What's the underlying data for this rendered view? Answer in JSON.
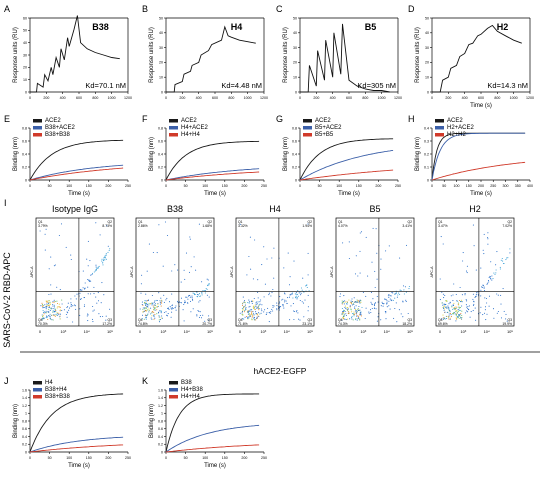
{
  "chart_data": [
    {
      "id": "A",
      "type": "line",
      "title": "B38",
      "kd": "Kd=70.1 nM",
      "ylabel": "Response units (RU)",
      "xlabel": "",
      "xlim": [
        0,
        1200
      ],
      "ylim": [
        0,
        60
      ],
      "xticks": [
        0,
        200,
        400,
        600,
        800,
        1000,
        1200
      ],
      "yticks": [
        0,
        10,
        20,
        30,
        40,
        50,
        60
      ],
      "x": [
        0,
        80,
        90,
        160,
        180,
        220,
        260,
        280,
        320,
        360,
        380,
        420,
        460,
        480,
        540,
        580,
        620,
        700,
        800,
        900,
        1000,
        1100
      ],
      "values": [
        0,
        0,
        7,
        4,
        14,
        9,
        20,
        14,
        28,
        20,
        35,
        26,
        44,
        37,
        51,
        62,
        40,
        35,
        32,
        30,
        28,
        27
      ]
    },
    {
      "id": "B",
      "type": "line",
      "title": "H4",
      "kd": "Kd=4.48 nM",
      "ylabel": "Response units (RU)",
      "xlabel": "",
      "xlim": [
        0,
        1200
      ],
      "ylim": [
        0,
        50
      ],
      "xticks": [
        0,
        200,
        400,
        600,
        800,
        1000,
        1200
      ],
      "yticks": [
        0,
        10,
        20,
        30,
        40,
        50
      ],
      "x": [
        0,
        100,
        110,
        200,
        220,
        300,
        320,
        400,
        430,
        520,
        560,
        680,
        720,
        760,
        800,
        900,
        1000,
        1100
      ],
      "values": [
        0,
        0,
        5,
        7,
        12,
        14,
        18,
        20,
        25,
        28,
        32,
        35,
        44,
        38,
        37,
        35,
        34,
        33
      ]
    },
    {
      "id": "C",
      "type": "line",
      "title": "B5",
      "kd": "Kd=305 nM",
      "ylabel": "Response units (RU)",
      "xlabel": "",
      "xlim": [
        0,
        1200
      ],
      "ylim": [
        0,
        50
      ],
      "xticks": [
        0,
        200,
        400,
        600,
        800,
        1000,
        1200
      ],
      "yticks": [
        0,
        10,
        20,
        30,
        40,
        50
      ],
      "x": [
        0,
        100,
        115,
        200,
        215,
        300,
        315,
        400,
        415,
        500,
        520,
        600,
        700,
        800,
        900,
        1000,
        1100
      ],
      "values": [
        0,
        0,
        18,
        4,
        28,
        8,
        35,
        10,
        40,
        12,
        46,
        8,
        4,
        2,
        1,
        1,
        0
      ]
    },
    {
      "id": "D",
      "type": "line",
      "title": "H2",
      "kd": "Kd=14.3 nM",
      "ylabel": "Response units (RU)",
      "xlabel": "Time (s)",
      "xlim": [
        0,
        1200
      ],
      "ylim": [
        0,
        50
      ],
      "xticks": [
        0,
        200,
        400,
        600,
        800,
        1000,
        1200
      ],
      "yticks": [
        0,
        10,
        20,
        30,
        40,
        50
      ],
      "x": [
        0,
        100,
        130,
        200,
        230,
        300,
        340,
        400,
        450,
        500,
        560,
        600,
        680,
        740,
        800,
        900,
        1000,
        1100
      ],
      "values": [
        0,
        0,
        8,
        10,
        16,
        18,
        24,
        26,
        32,
        33,
        38,
        39,
        43,
        45,
        41,
        38,
        35,
        33
      ]
    },
    {
      "id": "E",
      "type": "line",
      "xlabel": "Time (s)",
      "ylabel": "Binding (nm)",
      "xlim": [
        0,
        250
      ],
      "ylim": [
        0,
        0.8
      ],
      "xticks": [
        0,
        50,
        100,
        150,
        200,
        250
      ],
      "yticks": [
        0,
        0.2,
        0.4,
        0.6,
        0.8
      ],
      "series": [
        {
          "name": "ACE2",
          "color": "#1a1a1a",
          "plateau": 0.62,
          "k": 0.018
        },
        {
          "name": "B38+ACE2",
          "color": "#3b5fa8",
          "plateau": 0.3,
          "k": 0.006
        },
        {
          "name": "B38+B38",
          "color": "#d03a2a",
          "plateau": 0.3,
          "k": 0.004
        }
      ]
    },
    {
      "id": "F",
      "type": "line",
      "xlabel": "Time (s)",
      "ylabel": "Binding (nm)",
      "xlim": [
        0,
        250
      ],
      "ylim": [
        0,
        0.8
      ],
      "xticks": [
        0,
        50,
        100,
        150,
        200,
        250
      ],
      "yticks": [
        0,
        0.2,
        0.4,
        0.6,
        0.8
      ],
      "series": [
        {
          "name": "ACE2",
          "color": "#1a1a1a",
          "plateau": 0.6,
          "k": 0.02
        },
        {
          "name": "H4+ACE2",
          "color": "#3b5fa8",
          "plateau": 0.25,
          "k": 0.005
        },
        {
          "name": "H4+H4",
          "color": "#d03a2a",
          "plateau": 0.2,
          "k": 0.004
        }
      ]
    },
    {
      "id": "G",
      "type": "line",
      "xlabel": "Time (s)",
      "ylabel": "Binding (nm)",
      "xlim": [
        0,
        250
      ],
      "ylim": [
        0,
        0.8
      ],
      "xticks": [
        0,
        50,
        100,
        150,
        200,
        250
      ],
      "yticks": [
        0,
        0.2,
        0.4,
        0.6,
        0.8
      ],
      "series": [
        {
          "name": "ACE2",
          "color": "#1a1a1a",
          "plateau": 0.64,
          "k": 0.02
        },
        {
          "name": "B5+ACE2",
          "color": "#3b5fa8",
          "plateau": 0.6,
          "k": 0.006
        },
        {
          "name": "B5+B5",
          "color": "#d03a2a",
          "plateau": 0.3,
          "k": 0.003
        }
      ]
    },
    {
      "id": "H",
      "type": "line",
      "xlabel": "Time (s)",
      "ylabel": "Binding (nm)",
      "xlim": [
        0,
        400
      ],
      "ylim": [
        0,
        0.4
      ],
      "xticks": [
        0,
        50,
        100,
        150,
        200,
        250,
        300,
        350,
        400
      ],
      "yticks": [
        0,
        0.1,
        0.2,
        0.3,
        0.4
      ],
      "series": [
        {
          "name": "ACE2",
          "color": "#1a1a1a",
          "plateau": 0.36,
          "k": 0.05
        },
        {
          "name": "H2+ACE2",
          "color": "#3b5fa8",
          "plateau": 0.36,
          "k": 0.03
        },
        {
          "name": "H2+H2",
          "color": "#d03a2a",
          "plateau": 0.2,
          "k": 0.003
        }
      ]
    },
    {
      "id": "J",
      "type": "line",
      "xlabel": "Time (s)",
      "ylabel": "Binding (nm)",
      "xlim": [
        0,
        250
      ],
      "ylim": [
        0,
        1.6
      ],
      "xticks": [
        0,
        50,
        100,
        150,
        200,
        250
      ],
      "yticks": [
        0,
        0.2,
        0.4,
        0.6,
        0.8,
        1.0,
        1.2,
        1.4,
        1.6
      ],
      "series": [
        {
          "name": "H4",
          "color": "#1a1a1a",
          "plateau": 1.52,
          "k": 0.018
        },
        {
          "name": "B38+H4",
          "color": "#3b5fa8",
          "plateau": 0.45,
          "k": 0.008
        },
        {
          "name": "B38+B38",
          "color": "#d03a2a",
          "plateau": 0.3,
          "k": 0.004
        }
      ]
    },
    {
      "id": "K",
      "type": "line",
      "xlabel": "Time (s)",
      "ylabel": "Binding (nm)",
      "xlim": [
        0,
        250
      ],
      "ylim": [
        0,
        1.6
      ],
      "xticks": [
        0,
        50,
        100,
        150,
        200,
        250
      ],
      "yticks": [
        0,
        0.2,
        0.4,
        0.6,
        0.8,
        1.0,
        1.2,
        1.4,
        1.6
      ],
      "series": [
        {
          "name": "B38",
          "color": "#1a1a1a",
          "plateau": 1.5,
          "k": 0.03
        },
        {
          "name": "H4+B38",
          "color": "#3b5fa8",
          "plateau": 0.78,
          "k": 0.009
        },
        {
          "name": "H4+H4",
          "color": "#d03a2a",
          "plateau": 0.3,
          "k": 0.004
        }
      ]
    }
  ],
  "flow": {
    "panel_letter": "I",
    "ylabel": "SARS-CoV-2 RBD-APC",
    "xlabel": "hACE2-EGFP",
    "axis_label": "APC-A",
    "x_ticks": [
      "0",
      "10³",
      "10⁴",
      "10⁵"
    ],
    "panels": [
      {
        "title": "Isotype IgG",
        "q1": "Q1\n3.79%",
        "q2": "Q2\n8.73%",
        "q3": "Q3\n17.2%",
        "q4": "Q4\n70.3%"
      },
      {
        "title": "B38",
        "q1": "Q1\n2.86%",
        "q2": "Q2\n1.68%",
        "q3": "Q3\n20.7%",
        "q4": "Q4\n74.8%"
      },
      {
        "title": "H4",
        "q1": "Q1\n3.32%",
        "q2": "Q2\n1.94%",
        "q3": "Q3\n23.1%",
        "q4": "Q4\n71.6%"
      },
      {
        "title": "B5",
        "q1": "Q1\n4.07%",
        "q2": "Q2\n3.41%",
        "q3": "Q3\n18.2%",
        "q4": "Q4\n74.3%"
      },
      {
        "title": "H2",
        "q1": "Q1\n3.47%",
        "q2": "Q2\n7.02%",
        "q3": "Q3\n19.9%",
        "q4": "Q4\n69.6%"
      }
    ]
  }
}
